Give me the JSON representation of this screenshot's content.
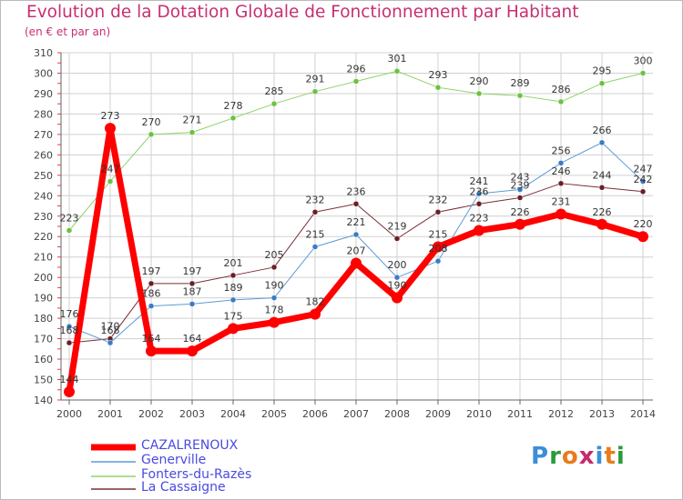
{
  "title": "Evolution de la Dotation Globale de Fonctionnement par Habitant",
  "subtitle": "(en € et par an)",
  "logo": {
    "text": "Proxiti",
    "colors": [
      "#3b8fd8",
      "#2b9a3a",
      "#e87b1c",
      "#c62a6b",
      "#3b8fd8",
      "#e87b1c",
      "#2b9a3a"
    ]
  },
  "colors": {
    "title": "#c72f72",
    "legend_text": "#4a4ae0",
    "grid": "#d0d0d0",
    "axis_tick": "#ff3333"
  },
  "chart_data": {
    "type": "line",
    "title": "Evolution de la Dotation Globale de Fonctionnement par Habitant",
    "subtitle": "(en € et par an)",
    "categories": [
      "2000",
      "2001",
      "2002",
      "2003",
      "2004",
      "2005",
      "2006",
      "2007",
      "2008",
      "2009",
      "2010",
      "2011",
      "2012",
      "2013",
      "2014"
    ],
    "ylim": [
      140,
      310
    ],
    "yticks": [
      140,
      150,
      160,
      170,
      180,
      190,
      200,
      210,
      220,
      230,
      240,
      250,
      260,
      270,
      280,
      290,
      300,
      310
    ],
    "grid": true,
    "legend_position": "bottom-left",
    "series": [
      {
        "name": "CAZALRENOUX",
        "color": "#ff0000",
        "dot": "#ff0000",
        "width": 7,
        "values": [
          144,
          273,
          164,
          164,
          175,
          178,
          182,
          207,
          190,
          215,
          223,
          226,
          231,
          226,
          220
        ],
        "labels": [
          "144",
          "273",
          "164",
          "164",
          "175",
          "178",
          "182",
          "207",
          "190",
          "215",
          "223",
          "226",
          "231",
          "226",
          "220"
        ]
      },
      {
        "name": "Generville",
        "color": "#5b9bd5",
        "dot": "#3a7cc4",
        "width": 1,
        "values": [
          176,
          168,
          186,
          187,
          189,
          190,
          215,
          221,
          200,
          208,
          241,
          243,
          256,
          266,
          247
        ],
        "labels": [
          "176",
          "168",
          "186",
          "187",
          "189",
          "190",
          "215",
          "221",
          "200",
          "208",
          "241",
          "243",
          "256",
          "266",
          "247"
        ]
      },
      {
        "name": "Fonters-du-Razès",
        "color": "#8fd36a",
        "dot": "#6cc240",
        "width": 1,
        "values": [
          223,
          247,
          270,
          271,
          278,
          285,
          291,
          296,
          301,
          293,
          290,
          289,
          286,
          295,
          300
        ],
        "labels": [
          "223",
          "247",
          "270",
          "271",
          "278",
          "285",
          "291",
          "296",
          "301",
          "293",
          "290",
          "289",
          "286",
          "295",
          "300"
        ]
      },
      {
        "name": "La Cassaigne",
        "color": "#7b2e35",
        "dot": "#6a1f25",
        "width": 1,
        "values": [
          168,
          170,
          197,
          197,
          201,
          205,
          232,
          236,
          219,
          232,
          236,
          239,
          246,
          244,
          242
        ],
        "labels": [
          "168",
          "170",
          "197",
          "197",
          "201",
          "205",
          "232",
          "236",
          "219",
          "232",
          "236",
          "239",
          "246",
          "244",
          "242"
        ]
      }
    ]
  }
}
